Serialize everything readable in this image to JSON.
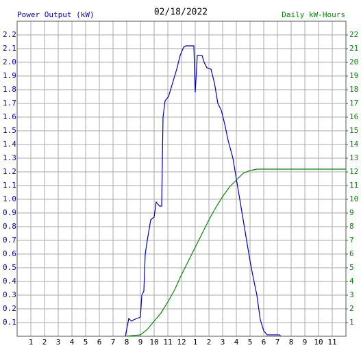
{
  "chart_data": {
    "type": "line",
    "title": "02/18/2022",
    "ylabel": "Power Output (kW)",
    "y2label": "Daily kW-Hours",
    "xlim": [
      0,
      24
    ],
    "xticks": [
      {
        "value": 1,
        "label": "1"
      },
      {
        "value": 2,
        "label": "2"
      },
      {
        "value": 3,
        "label": "3"
      },
      {
        "value": 4,
        "label": "4"
      },
      {
        "value": 5,
        "label": "5"
      },
      {
        "value": 6,
        "label": "6"
      },
      {
        "value": 7,
        "label": "7"
      },
      {
        "value": 8,
        "label": "8"
      },
      {
        "value": 9,
        "label": "9"
      },
      {
        "value": 10,
        "label": "10"
      },
      {
        "value": 11,
        "label": "11"
      },
      {
        "value": 12,
        "label": "12"
      },
      {
        "value": 13,
        "label": "1"
      },
      {
        "value": 14,
        "label": "2"
      },
      {
        "value": 15,
        "label": "3"
      },
      {
        "value": 16,
        "label": "4"
      },
      {
        "value": 17,
        "label": "5"
      },
      {
        "value": 18,
        "label": "6"
      },
      {
        "value": 19,
        "label": "7"
      },
      {
        "value": 20,
        "label": "8"
      },
      {
        "value": 21,
        "label": "9"
      },
      {
        "value": 22,
        "label": "10"
      },
      {
        "value": 23,
        "label": "11"
      }
    ],
    "ylim": [
      0,
      2.3
    ],
    "yticks": [
      0.1,
      0.2,
      0.3,
      0.4,
      0.5,
      0.6,
      0.7,
      0.8,
      0.9,
      {
        "value": 1,
        "label": "1.0"
      },
      1.1,
      1.2,
      1.3,
      1.4,
      1.5,
      1.6,
      1.7,
      1.8,
      1.9,
      {
        "value": 2,
        "label": "2.0"
      },
      2.1,
      2.2
    ],
    "y2lim": [
      0,
      23
    ],
    "y2ticks": [
      1,
      2,
      3,
      4,
      5,
      6,
      7,
      8,
      9,
      10,
      11,
      12,
      13,
      14,
      15,
      16,
      17,
      18,
      19,
      20,
      21,
      22
    ],
    "grid": true,
    "series": [
      {
        "name": "Power Output (kW)",
        "color": "#0000bb",
        "x": [
          7.9,
          8.15,
          8.35,
          8.5,
          8.75,
          9.0,
          9.1,
          9.25,
          9.35,
          9.5,
          9.75,
          10.0,
          10.15,
          10.4,
          10.55,
          10.65,
          10.8,
          11.05,
          11.35,
          11.65,
          11.9,
          12.15,
          12.3,
          12.9,
          13.0,
          13.15,
          13.5,
          13.65,
          13.85,
          14.15,
          14.4,
          14.65,
          14.9,
          15.15,
          15.4,
          15.75,
          16.0,
          16.25,
          16.5,
          16.75,
          17.0,
          17.25,
          17.5,
          17.75,
          18.0,
          18.25,
          19.15,
          19.25
        ],
        "values": [
          0,
          0.13,
          0.11,
          0.12,
          0.13,
          0.14,
          0.3,
          0.33,
          0.6,
          0.7,
          0.85,
          0.87,
          0.98,
          0.95,
          0.95,
          1.6,
          1.72,
          1.75,
          1.85,
          1.95,
          2.05,
          2.11,
          2.12,
          2.12,
          1.78,
          2.05,
          2.05,
          2.0,
          1.96,
          1.95,
          1.85,
          1.7,
          1.65,
          1.55,
          1.43,
          1.3,
          1.15,
          1.0,
          0.85,
          0.7,
          0.55,
          0.42,
          0.3,
          0.12,
          0.04,
          0.01,
          0.01,
          0
        ]
      },
      {
        "name": "Daily kW-Hours",
        "color": "#008800",
        "axis": "y2",
        "x": [
          7.9,
          9.0,
          9.5,
          10.0,
          10.5,
          11.0,
          11.5,
          12.0,
          12.5,
          13.0,
          13.5,
          14.0,
          14.5,
          15.0,
          15.5,
          16.0,
          16.5,
          17.0,
          17.5,
          18.0,
          24.0
        ],
        "values": [
          0,
          0.1,
          0.5,
          1.1,
          1.7,
          2.5,
          3.4,
          4.5,
          5.5,
          6.5,
          7.5,
          8.5,
          9.4,
          10.2,
          10.9,
          11.4,
          11.9,
          12.1,
          12.2,
          12.2,
          12.2
        ]
      }
    ]
  }
}
